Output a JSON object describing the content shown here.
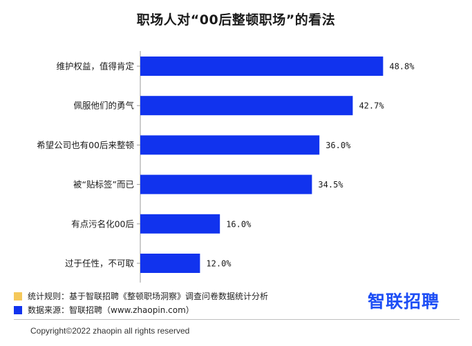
{
  "title": "职场人对“00后整顿职场”的看法",
  "chart_data": {
    "type": "bar",
    "orientation": "horizontal",
    "categories": [
      "维护权益，值得肯定",
      "佩服他们的勇气",
      "希望公司也有00后来整顿",
      "被“贴标签”而已",
      "有点污名化00后",
      "过于任性，不可取"
    ],
    "values": [
      48.8,
      42.7,
      36.0,
      34.5,
      16.0,
      12.0
    ],
    "value_labels": [
      "48.8%",
      "42.7%",
      "36.0%",
      "34.5%",
      "16.0%",
      "12.0%"
    ],
    "unit": "%",
    "bar_color": "#1133ee",
    "title": "职场人对“00后整顿职场”的看法",
    "xlabel": "",
    "ylabel": "",
    "xlim": [
      0,
      60
    ],
    "grid": false
  },
  "notes": [
    {
      "text": "统计规则：基于智联招聘《整顿职场洞察》调查问卷数据统计分析",
      "color": "#f5c85a"
    },
    {
      "text": "数据来源：智联招聘（www.zhaopin.com）",
      "color": "#1133ee"
    }
  ],
  "logo": "智联招聘",
  "copyright": "Copyright©2022 zhaopin all rights reserved"
}
